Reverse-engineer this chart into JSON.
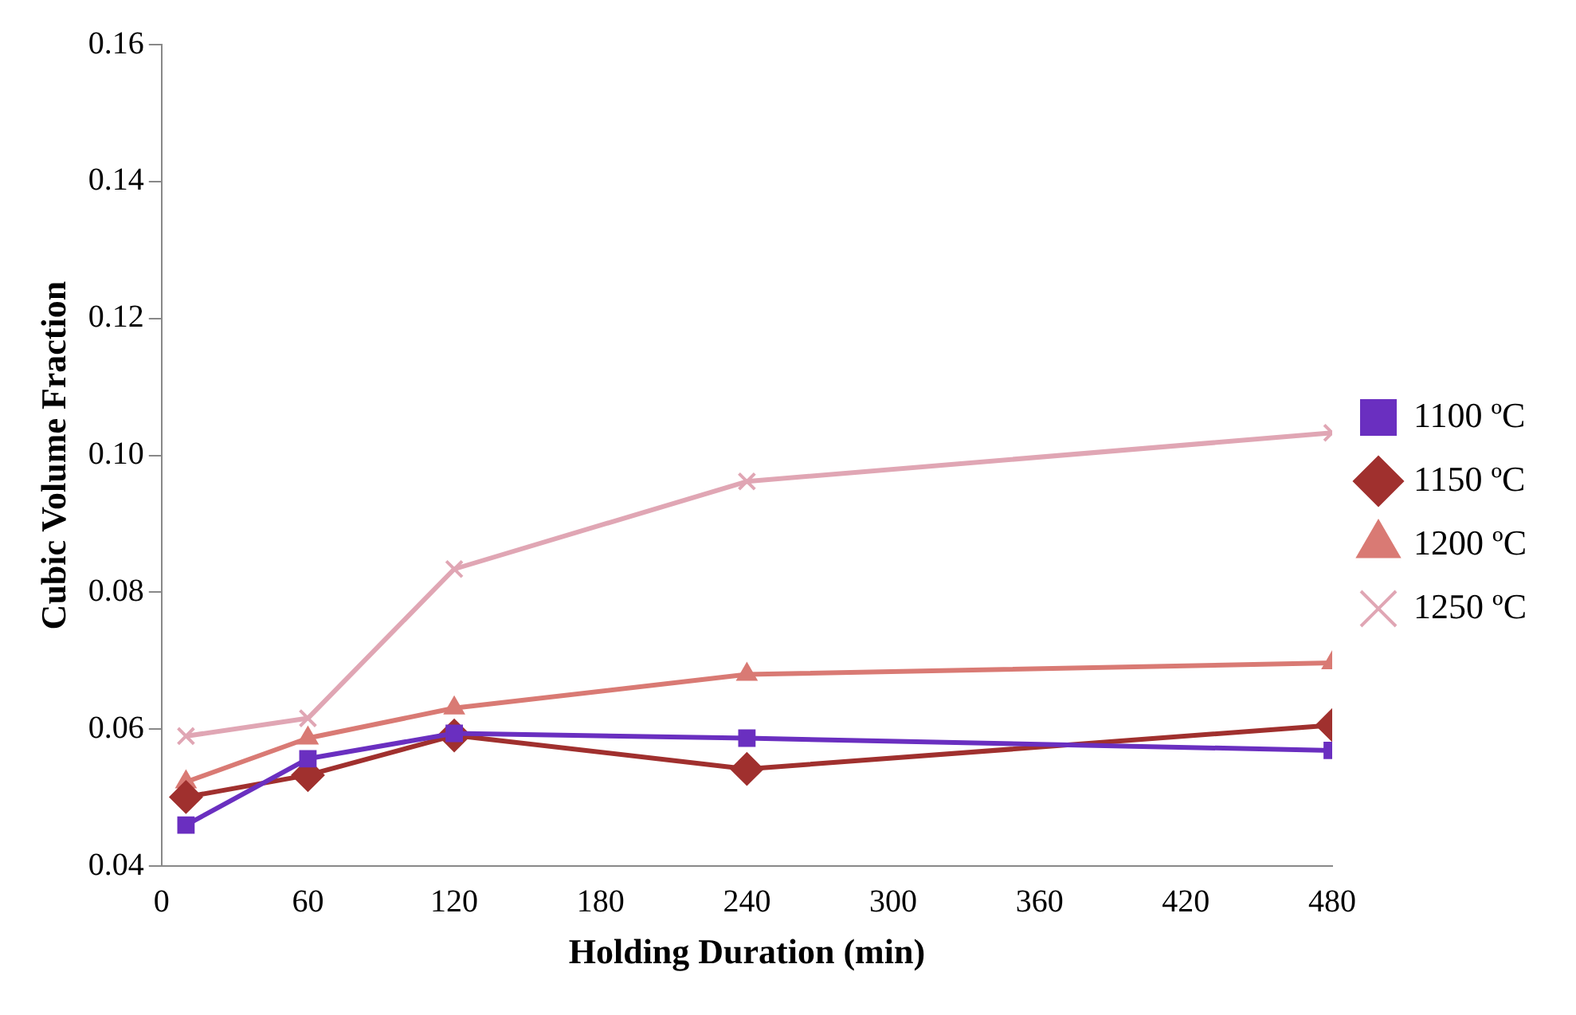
{
  "chart_data": {
    "type": "line",
    "xlabel": "Holding Duration (min)",
    "ylabel": "Cubic Volume Fraction",
    "xlim": [
      0,
      480
    ],
    "xticks": [
      0,
      60,
      120,
      180,
      240,
      300,
      360,
      420,
      480
    ],
    "ylim": [
      0.04,
      0.16
    ],
    "yticks": [
      0.04,
      0.06,
      0.08,
      {
        "value": 0.1,
        "label": "0.10"
      },
      0.12,
      0.14,
      0.16
    ],
    "grid": false,
    "legend": "right",
    "line_style": "solid",
    "series": [
      {
        "name": "1100 ºC",
        "color": "#6a2fc0",
        "marker": "square",
        "x": [
          10,
          60,
          120,
          240,
          480
        ],
        "values": [
          0.046,
          0.0557,
          0.0594,
          0.0587,
          0.0569
        ]
      },
      {
        "name": "1150 ºC",
        "color": "#a0302e",
        "marker": "diamond",
        "x": [
          10,
          60,
          120,
          240,
          480
        ],
        "values": [
          0.0501,
          0.0533,
          0.0591,
          0.0542,
          0.0606
        ]
      },
      {
        "name": "1200 ºC",
        "color": "#d97a74",
        "marker": "triangle",
        "x": [
          10,
          60,
          120,
          240,
          480
        ],
        "values": [
          0.0523,
          0.0587,
          0.0631,
          0.068,
          0.0697
        ]
      },
      {
        "name": "1250 ºC",
        "color": "#e0a6b4",
        "marker": "cross",
        "x": [
          10,
          60,
          120,
          240,
          480
        ],
        "values": [
          0.059,
          0.0616,
          0.0834,
          0.0962,
          0.1033
        ]
      }
    ]
  }
}
